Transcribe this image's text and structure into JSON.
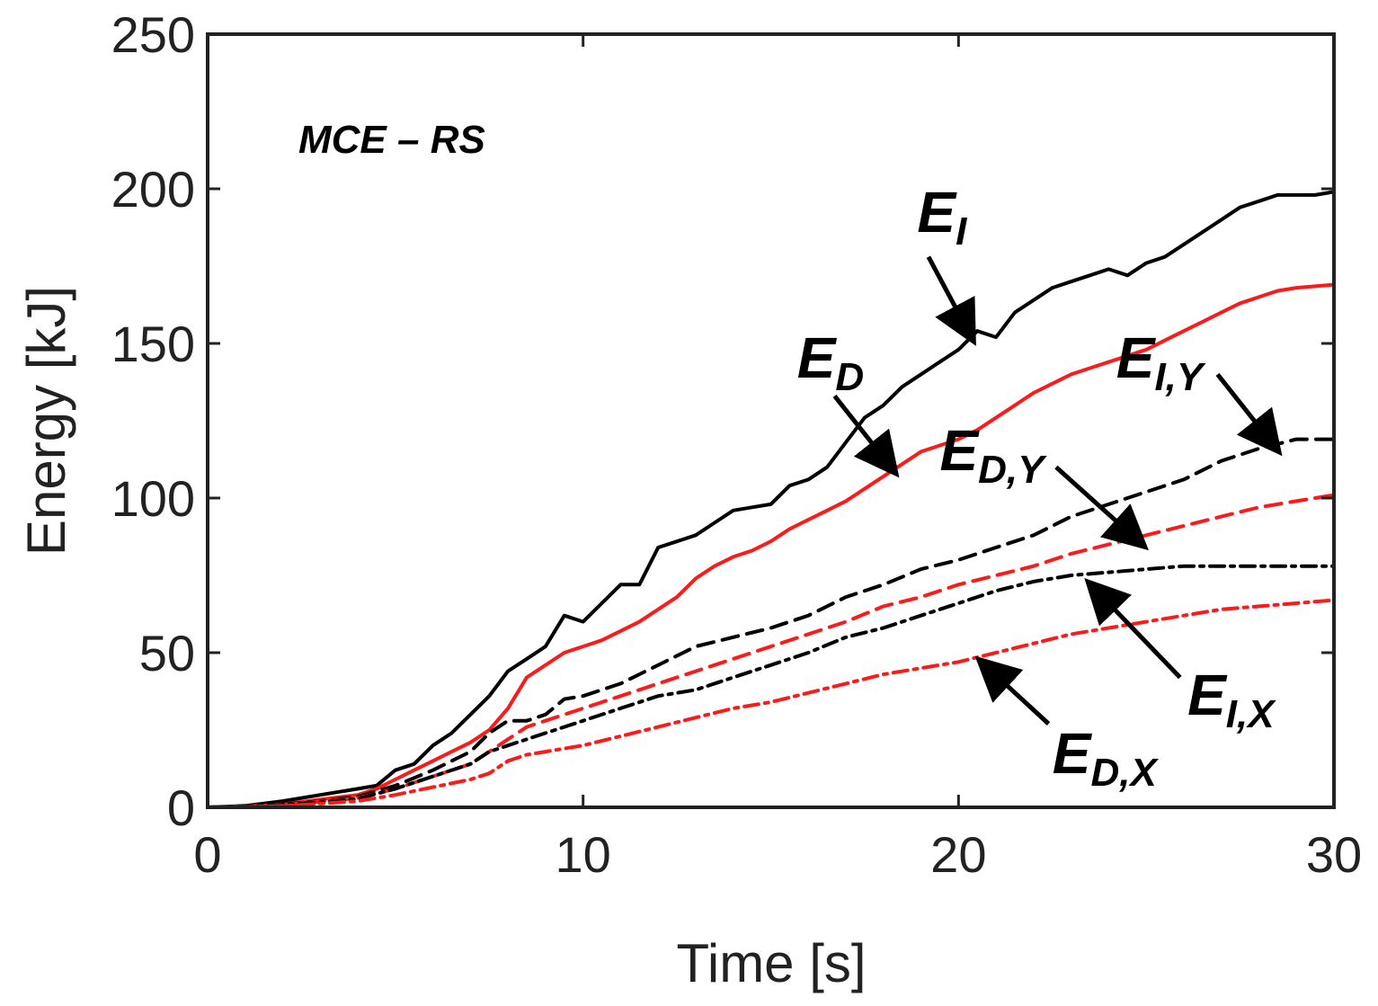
{
  "chart_data": {
    "type": "line",
    "title": "",
    "annotation_title": "MCE – RS",
    "xlabel": "Time [s]",
    "ylabel": "Energy [kJ]",
    "xlim": [
      0,
      30
    ],
    "ylim": [
      0,
      250
    ],
    "xticks": [
      0,
      10,
      20,
      30
    ],
    "yticks": [
      0,
      50,
      100,
      150,
      200,
      250
    ],
    "grid": false,
    "colors": {
      "black": "#000000",
      "red": "#ff1a1a"
    },
    "series": [
      {
        "name": "E_I",
        "label_main": "E",
        "label_sub": "I",
        "color": "#000000",
        "style": "solid",
        "x": [
          0,
          1,
          2,
          3,
          4,
          4.5,
          5,
          5.5,
          6,
          6.5,
          7,
          7.5,
          8,
          8.5,
          9,
          9.5,
          10,
          10.5,
          11,
          11.5,
          12,
          12.5,
          13,
          13.5,
          14,
          14.5,
          15,
          15.5,
          16,
          16.5,
          17,
          17.5,
          18,
          18.5,
          19,
          19.5,
          20,
          20.5,
          21,
          21.5,
          22,
          22.5,
          23,
          23.5,
          24,
          24.5,
          25,
          25.5,
          26,
          26.5,
          27,
          27.5,
          28,
          28.5,
          29,
          29.5,
          30
        ],
        "y": [
          0,
          0.5,
          2,
          4,
          6,
          7,
          12,
          14,
          20,
          24,
          30,
          36,
          44,
          48,
          52,
          62,
          60,
          66,
          72,
          72,
          84,
          86,
          88,
          92,
          96,
          97,
          98,
          104,
          106,
          110,
          118,
          126,
          130,
          136,
          140,
          144,
          148,
          154,
          152,
          160,
          164,
          168,
          170,
          172,
          174,
          172,
          176,
          178,
          182,
          186,
          190,
          194,
          196,
          198,
          198,
          198,
          199
        ]
      },
      {
        "name": "E_D",
        "label_main": "E",
        "label_sub": "D",
        "color": "#ff1a1a",
        "style": "solid",
        "x": [
          0,
          1,
          2,
          3,
          4,
          4.5,
          5,
          5.5,
          6,
          6.5,
          7,
          7.5,
          8,
          8.5,
          9,
          9.5,
          10,
          10.5,
          11,
          11.5,
          12,
          12.5,
          13,
          13.5,
          14,
          14.5,
          15,
          15.5,
          16,
          16.5,
          17,
          17.5,
          18,
          18.5,
          19,
          19.5,
          20,
          20.5,
          21,
          21.5,
          22,
          22.5,
          23,
          23.5,
          24,
          24.5,
          25,
          25.5,
          26,
          26.5,
          27,
          27.5,
          28,
          28.5,
          29,
          29.5,
          30
        ],
        "y": [
          0,
          0.3,
          1,
          2.5,
          4,
          6,
          9,
          12,
          15,
          18,
          21,
          25,
          32,
          42,
          46,
          50,
          52,
          54,
          57,
          60,
          64,
          68,
          74,
          78,
          81,
          83,
          86,
          90,
          93,
          96,
          99,
          103,
          107,
          111,
          115,
          117,
          119,
          122,
          126,
          130,
          134,
          137,
          140,
          142,
          144,
          146,
          148,
          151,
          154,
          157,
          160,
          163,
          165,
          167,
          168,
          168.5,
          169
        ]
      },
      {
        "name": "E_I,Y",
        "label_main": "E",
        "label_sub": "I,Y",
        "color": "#000000",
        "style": "dash",
        "x": [
          0,
          1,
          2,
          3,
          4,
          5,
          6,
          7,
          7.5,
          8,
          8.5,
          9,
          9.5,
          10,
          11,
          12,
          13,
          14,
          15,
          16,
          17,
          18,
          19,
          20,
          21,
          22,
          23,
          24,
          25,
          26,
          27,
          28,
          29,
          30
        ],
        "y": [
          0,
          0.3,
          1,
          2,
          3.5,
          7,
          12,
          18,
          24,
          28,
          28,
          30,
          35,
          36,
          40,
          46,
          52,
          55,
          58,
          62,
          68,
          72,
          77,
          80,
          84,
          88,
          94,
          98,
          102,
          106,
          112,
          116,
          119,
          119
        ]
      },
      {
        "name": "E_D,Y",
        "label_main": "E",
        "label_sub": "D,Y",
        "color": "#ff1a1a",
        "style": "dash",
        "x": [
          0,
          1,
          2,
          3,
          4,
          5,
          6,
          7,
          7.5,
          8,
          8.5,
          9,
          9.5,
          10,
          11,
          12,
          13,
          14,
          15,
          16,
          17,
          18,
          19,
          20,
          21,
          22,
          23,
          24,
          25,
          26,
          27,
          28,
          29,
          30
        ],
        "y": [
          0,
          0.2,
          0.8,
          1.8,
          3,
          6,
          10,
          14,
          18,
          22,
          26,
          28,
          30,
          32,
          36,
          40,
          44,
          48,
          52,
          56,
          60,
          65,
          68,
          72,
          75,
          78,
          82,
          85,
          88,
          91,
          94,
          97,
          99,
          101
        ]
      },
      {
        "name": "E_I,X",
        "label_main": "E",
        "label_sub": "I,X",
        "color": "#000000",
        "style": "dashdot",
        "x": [
          0,
          1,
          2,
          3,
          4,
          5,
          6,
          7,
          7.5,
          8,
          8.5,
          9,
          9.5,
          10,
          11,
          12,
          13,
          14,
          15,
          16,
          17,
          18,
          19,
          20,
          21,
          22,
          23,
          24,
          25,
          26,
          27,
          28,
          29,
          30
        ],
        "y": [
          0,
          0.2,
          0.8,
          1.6,
          2.8,
          6,
          10,
          14,
          18,
          20,
          22,
          24,
          26,
          28,
          32,
          36,
          38,
          42,
          46,
          50,
          55,
          58,
          62,
          66,
          70,
          73,
          75,
          76,
          77,
          78,
          78,
          78,
          78,
          78
        ]
      },
      {
        "name": "E_D,X",
        "label_main": "E",
        "label_sub": "D,X",
        "color": "#ff1a1a",
        "style": "dashdot",
        "x": [
          0,
          1,
          2,
          3,
          4,
          5,
          6,
          7,
          7.5,
          8,
          8.5,
          9,
          9.5,
          10,
          11,
          12,
          13,
          14,
          15,
          16,
          17,
          18,
          19,
          20,
          21,
          22,
          23,
          24,
          25,
          26,
          27,
          28,
          29,
          30
        ],
        "y": [
          0,
          0.1,
          0.5,
          1.2,
          2,
          4,
          6.5,
          9,
          11,
          15,
          17,
          18,
          19,
          20,
          23,
          26,
          29,
          32,
          34,
          37,
          40,
          43,
          45,
          47,
          50,
          53,
          56,
          58,
          60,
          62,
          64,
          65,
          66,
          67
        ]
      }
    ],
    "annotations": [
      {
        "series": "E_I",
        "text_at": [
          18.9,
          186
        ],
        "arrow_from": [
          19.2,
          178
        ],
        "arrow_to": [
          20.3,
          153
        ]
      },
      {
        "series": "E_D",
        "text_at": [
          15.7,
          139
        ],
        "arrow_from": [
          16.7,
          133
        ],
        "arrow_to": [
          18.2,
          110
        ]
      },
      {
        "series": "E_I,Y",
        "text_at": [
          24.2,
          139
        ],
        "arrow_from": [
          26.9,
          140
        ],
        "arrow_to": [
          28.4,
          117
        ]
      },
      {
        "series": "E_D,Y",
        "text_at": [
          19.5,
          109
        ],
        "arrow_from": [
          22.6,
          110
        ],
        "arrow_to": [
          24.8,
          86
        ]
      },
      {
        "series": "E_I,X",
        "text_at": [
          26.1,
          30
        ],
        "arrow_from": [
          25.9,
          42
        ],
        "arrow_to": [
          23.6,
          71
        ]
      },
      {
        "series": "E_D,X",
        "text_at": [
          22.5,
          11
        ],
        "arrow_from": [
          22.4,
          27
        ],
        "arrow_to": [
          20.7,
          46
        ]
      }
    ]
  }
}
